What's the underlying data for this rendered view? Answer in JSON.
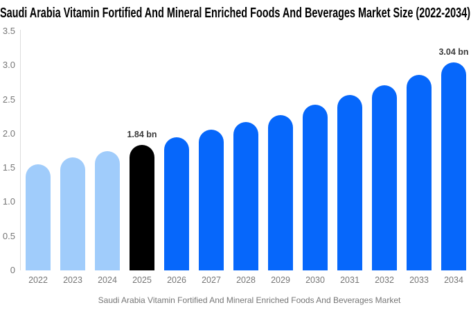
{
  "title": "Saudi Arabia Vitamin Fortified And Mineral Enriched Foods And Beverages Market Size (2022-2034)",
  "colors": {
    "background": "#ffffff",
    "historical_bar": "#a0ccfb",
    "highlight_bar": "#000000",
    "forecast_bar": "#0667fb",
    "axis_line": "#dcdcdc",
    "tick_text": "#757575",
    "data_label_text": "#3a3a3a",
    "title_text": "#000000"
  },
  "chart_data": {
    "type": "bar",
    "title": "Saudi Arabia Vitamin Fortified And Mineral Enriched Foods And Beverages Market Size (2022-2034)",
    "xlabel": "",
    "ylabel": "",
    "unit": "bn",
    "ylim": [
      0,
      3.5
    ],
    "grid": false,
    "legend_position": "bottom",
    "categories": [
      "2022",
      "2023",
      "2024",
      "2025",
      "2026",
      "2027",
      "2028",
      "2029",
      "2030",
      "2031",
      "2032",
      "2033",
      "2034"
    ],
    "values": [
      1.55,
      1.65,
      1.74,
      1.84,
      1.95,
      2.06,
      2.17,
      2.27,
      2.42,
      2.57,
      2.71,
      2.86,
      3.04
    ],
    "bar_colors": [
      "#a0ccfb",
      "#a0ccfb",
      "#a0ccfb",
      "#000000",
      "#0667fb",
      "#0667fb",
      "#0667fb",
      "#0667fb",
      "#0667fb",
      "#0667fb",
      "#0667fb",
      "#0667fb",
      "#0667fb"
    ],
    "yticks": [
      {
        "value": 3.5,
        "label": "3.5"
      },
      {
        "value": 3.0,
        "label": "3.0"
      },
      {
        "value": 2.5,
        "label": "2.5"
      },
      {
        "value": 2.0,
        "label": "2.0"
      },
      {
        "value": 1.5,
        "label": "1.5"
      },
      {
        "value": 1.0,
        "label": "1.0"
      },
      {
        "value": 0.5,
        "label": "0.5"
      },
      {
        "value": 0,
        "label": "0"
      }
    ],
    "annotations": [
      {
        "category": "2025",
        "index": 3,
        "text": "1.84 bn"
      },
      {
        "category": "2034",
        "index": 12,
        "text": "3.04 bn"
      }
    ],
    "legend": {
      "swatch_color": "#a0ccfb",
      "label": "Saudi Arabia Vitamin Fortified And Mineral Enriched Foods And Beverages Market"
    }
  }
}
